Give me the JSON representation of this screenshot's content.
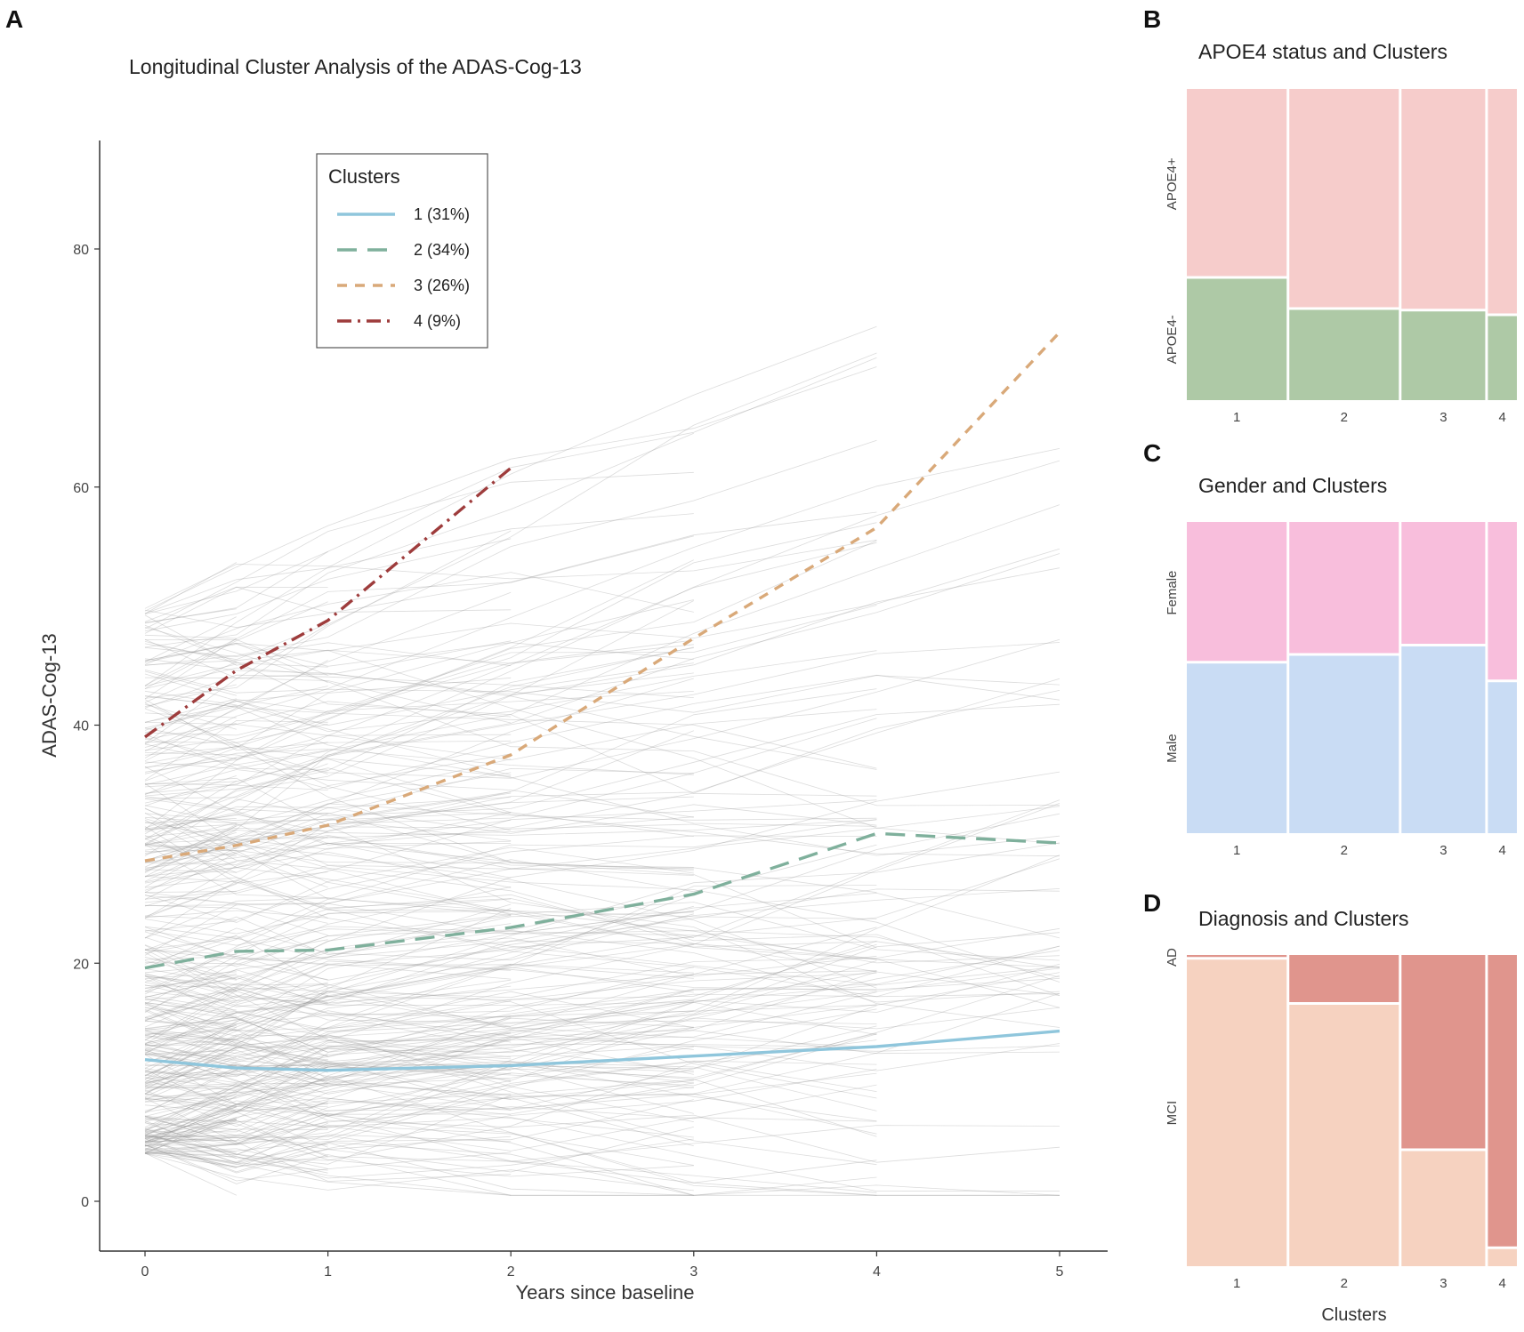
{
  "panels": {
    "a": {
      "letter": "A"
    },
    "b": {
      "letter": "B"
    },
    "c": {
      "letter": "C"
    },
    "d": {
      "letter": "D"
    }
  },
  "colors": {
    "cluster1": "#8fc6dc",
    "cluster2": "#7fb09c",
    "cluster3": "#d9a979",
    "cluster4": "#9e3c3c",
    "apoe4_pos": "#f6cccb",
    "apoe4_neg": "#aec9a6",
    "female": "#f8bedc",
    "male": "#c9dcf4",
    "ad": "#e0958d",
    "mci": "#f6d2c0",
    "spaghetti": "#9a9a9a"
  },
  "chart_data": [
    {
      "id": "A",
      "type": "line",
      "title": "Longitudinal Cluster Analysis of the ADAS-Cog-13",
      "xlabel": "Years since baseline",
      "ylabel": "ADAS-Cog-13",
      "xlim": [
        -0.25,
        5.25
      ],
      "ylim": [
        -4,
        88
      ],
      "xticks": [
        0,
        1,
        2,
        3,
        4,
        5
      ],
      "yticks": [
        0,
        20,
        40,
        60,
        80
      ],
      "legend": {
        "title": "Clusters",
        "position": "top-center"
      },
      "series": [
        {
          "name": "1 (31%)",
          "style": "solid",
          "x": [
            0,
            0.5,
            1,
            2,
            3,
            4,
            5
          ],
          "y": [
            11.9,
            11.2,
            11.0,
            11.4,
            12.2,
            13.0,
            14.3
          ]
        },
        {
          "name": "2 (34%)",
          "style": "longdash",
          "x": [
            0,
            0.5,
            1,
            2,
            3,
            4,
            5
          ],
          "y": [
            19.6,
            21.0,
            21.1,
            23.0,
            25.8,
            30.9,
            30.1
          ]
        },
        {
          "name": "3 (26%)",
          "style": "dash",
          "x": [
            0,
            0.5,
            1,
            2,
            3,
            4,
            5
          ],
          "y": [
            28.6,
            29.9,
            31.6,
            37.5,
            47.3,
            56.6,
            73.0
          ]
        },
        {
          "name": "4 (9%)",
          "style": "dashdot",
          "x": [
            0,
            0.5,
            1,
            2
          ],
          "y": [
            39.0,
            44.6,
            48.8,
            61.6
          ]
        }
      ]
    },
    {
      "id": "B",
      "type": "mosaic",
      "title": "APOE4 status and Clusters",
      "categories": [
        "1",
        "2",
        "3",
        "4"
      ],
      "column_widths": [
        0.31,
        0.34,
        0.26,
        0.09
      ],
      "series": [
        {
          "name": "APOE4-",
          "values": [
            0.39,
            0.29,
            0.285,
            0.27
          ]
        },
        {
          "name": "APOE4+",
          "values": [
            0.61,
            0.71,
            0.715,
            0.73
          ]
        }
      ]
    },
    {
      "id": "C",
      "type": "mosaic",
      "title": "Gender and Clusters",
      "categories": [
        "1",
        "2",
        "3",
        "4"
      ],
      "column_widths": [
        0.31,
        0.34,
        0.26,
        0.09
      ],
      "series": [
        {
          "name": "Male",
          "values": [
            0.545,
            0.57,
            0.6,
            0.485
          ]
        },
        {
          "name": "Female",
          "values": [
            0.455,
            0.43,
            0.4,
            0.515
          ]
        }
      ]
    },
    {
      "id": "D",
      "type": "mosaic",
      "title": "Diagnosis and Clusters",
      "xlabel": "Clusters",
      "categories": [
        "1",
        "2",
        "3",
        "4"
      ],
      "column_widths": [
        0.31,
        0.34,
        0.26,
        0.09
      ],
      "series": [
        {
          "name": "MCI",
          "values": [
            0.985,
            0.84,
            0.37,
            0.055
          ]
        },
        {
          "name": "AD",
          "values": [
            0.015,
            0.16,
            0.63,
            0.945
          ]
        }
      ]
    }
  ]
}
